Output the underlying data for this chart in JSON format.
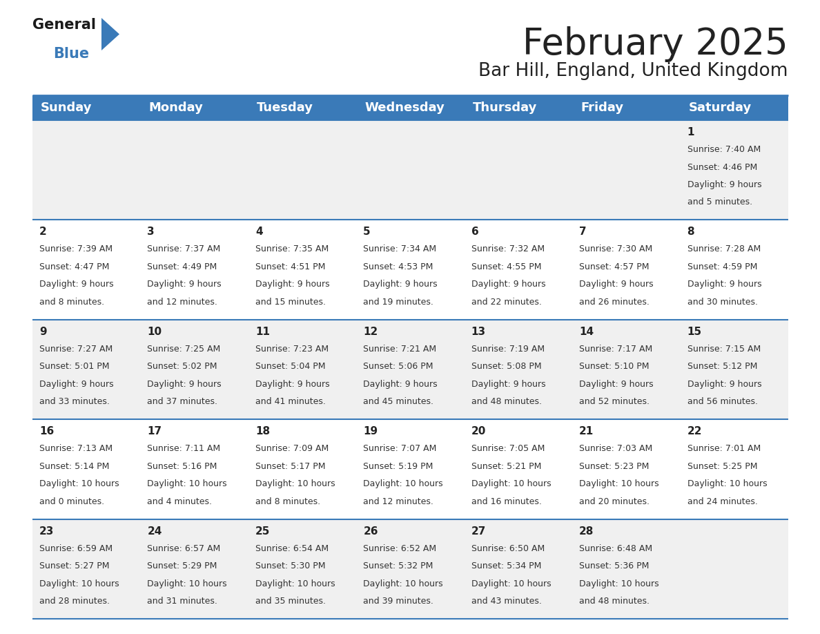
{
  "title": "February 2025",
  "subtitle": "Bar Hill, England, United Kingdom",
  "days_of_week": [
    "Sunday",
    "Monday",
    "Tuesday",
    "Wednesday",
    "Thursday",
    "Friday",
    "Saturday"
  ],
  "header_bg": "#3a7ab8",
  "header_text": "#ffffff",
  "row_bg_odd": "#f0f0f0",
  "row_bg_even": "#ffffff",
  "divider_color": "#3a7ab8",
  "day_number_color": "#222222",
  "info_text_color": "#333333",
  "background_color": "#ffffff",
  "calendar_data": [
    [
      null,
      null,
      null,
      null,
      null,
      null,
      {
        "day": 1,
        "sunrise": "7:40 AM",
        "sunset": "4:46 PM",
        "daylight": "9 hours\nand 5 minutes."
      }
    ],
    [
      {
        "day": 2,
        "sunrise": "7:39 AM",
        "sunset": "4:47 PM",
        "daylight": "9 hours\nand 8 minutes."
      },
      {
        "day": 3,
        "sunrise": "7:37 AM",
        "sunset": "4:49 PM",
        "daylight": "9 hours\nand 12 minutes."
      },
      {
        "day": 4,
        "sunrise": "7:35 AM",
        "sunset": "4:51 PM",
        "daylight": "9 hours\nand 15 minutes."
      },
      {
        "day": 5,
        "sunrise": "7:34 AM",
        "sunset": "4:53 PM",
        "daylight": "9 hours\nand 19 minutes."
      },
      {
        "day": 6,
        "sunrise": "7:32 AM",
        "sunset": "4:55 PM",
        "daylight": "9 hours\nand 22 minutes."
      },
      {
        "day": 7,
        "sunrise": "7:30 AM",
        "sunset": "4:57 PM",
        "daylight": "9 hours\nand 26 minutes."
      },
      {
        "day": 8,
        "sunrise": "7:28 AM",
        "sunset": "4:59 PM",
        "daylight": "9 hours\nand 30 minutes."
      }
    ],
    [
      {
        "day": 9,
        "sunrise": "7:27 AM",
        "sunset": "5:01 PM",
        "daylight": "9 hours\nand 33 minutes."
      },
      {
        "day": 10,
        "sunrise": "7:25 AM",
        "sunset": "5:02 PM",
        "daylight": "9 hours\nand 37 minutes."
      },
      {
        "day": 11,
        "sunrise": "7:23 AM",
        "sunset": "5:04 PM",
        "daylight": "9 hours\nand 41 minutes."
      },
      {
        "day": 12,
        "sunrise": "7:21 AM",
        "sunset": "5:06 PM",
        "daylight": "9 hours\nand 45 minutes."
      },
      {
        "day": 13,
        "sunrise": "7:19 AM",
        "sunset": "5:08 PM",
        "daylight": "9 hours\nand 48 minutes."
      },
      {
        "day": 14,
        "sunrise": "7:17 AM",
        "sunset": "5:10 PM",
        "daylight": "9 hours\nand 52 minutes."
      },
      {
        "day": 15,
        "sunrise": "7:15 AM",
        "sunset": "5:12 PM",
        "daylight": "9 hours\nand 56 minutes."
      }
    ],
    [
      {
        "day": 16,
        "sunrise": "7:13 AM",
        "sunset": "5:14 PM",
        "daylight": "10 hours\nand 0 minutes."
      },
      {
        "day": 17,
        "sunrise": "7:11 AM",
        "sunset": "5:16 PM",
        "daylight": "10 hours\nand 4 minutes."
      },
      {
        "day": 18,
        "sunrise": "7:09 AM",
        "sunset": "5:17 PM",
        "daylight": "10 hours\nand 8 minutes."
      },
      {
        "day": 19,
        "sunrise": "7:07 AM",
        "sunset": "5:19 PM",
        "daylight": "10 hours\nand 12 minutes."
      },
      {
        "day": 20,
        "sunrise": "7:05 AM",
        "sunset": "5:21 PM",
        "daylight": "10 hours\nand 16 minutes."
      },
      {
        "day": 21,
        "sunrise": "7:03 AM",
        "sunset": "5:23 PM",
        "daylight": "10 hours\nand 20 minutes."
      },
      {
        "day": 22,
        "sunrise": "7:01 AM",
        "sunset": "5:25 PM",
        "daylight": "10 hours\nand 24 minutes."
      }
    ],
    [
      {
        "day": 23,
        "sunrise": "6:59 AM",
        "sunset": "5:27 PM",
        "daylight": "10 hours\nand 28 minutes."
      },
      {
        "day": 24,
        "sunrise": "6:57 AM",
        "sunset": "5:29 PM",
        "daylight": "10 hours\nand 31 minutes."
      },
      {
        "day": 25,
        "sunrise": "6:54 AM",
        "sunset": "5:30 PM",
        "daylight": "10 hours\nand 35 minutes."
      },
      {
        "day": 26,
        "sunrise": "6:52 AM",
        "sunset": "5:32 PM",
        "daylight": "10 hours\nand 39 minutes."
      },
      {
        "day": 27,
        "sunrise": "6:50 AM",
        "sunset": "5:34 PM",
        "daylight": "10 hours\nand 43 minutes."
      },
      {
        "day": 28,
        "sunrise": "6:48 AM",
        "sunset": "5:36 PM",
        "daylight": "10 hours\nand 48 minutes."
      },
      null
    ]
  ],
  "title_fontsize": 38,
  "subtitle_fontsize": 19,
  "header_fontsize": 13,
  "day_num_fontsize": 11,
  "info_fontsize": 9
}
